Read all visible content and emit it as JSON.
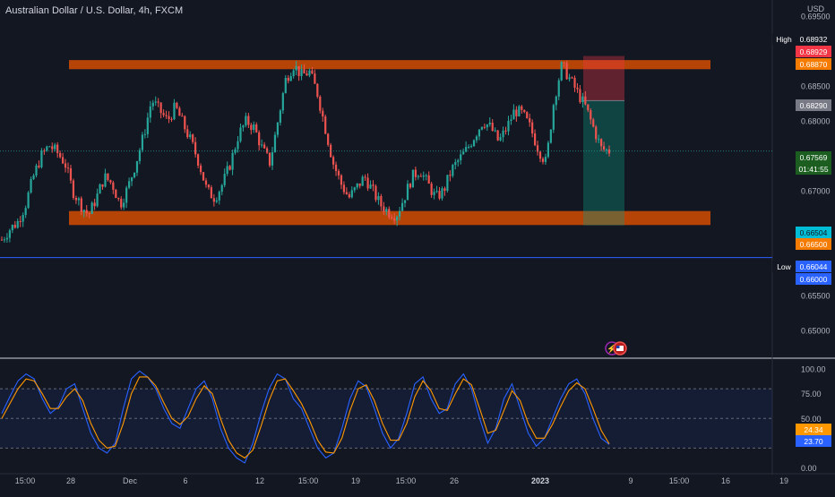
{
  "header": {
    "symbol": "Australian Dollar / U.S. Dollar",
    "interval": "4h",
    "exchange": "FXCM",
    "currency": "USD"
  },
  "chart_data": [
    {
      "type": "candlestick",
      "title": "Australian Dollar / U.S. Dollar, 4h, FXCM",
      "ylim": [
        0.6463,
        0.6973
      ],
      "yticks": [
        "0.69500",
        "0.68500",
        "0.68000",
        "0.67000",
        "0.65500",
        "0.65000"
      ],
      "xticks": [
        "15:00",
        "28",
        "Dec",
        "6",
        "12",
        "15:00",
        "19",
        "15:00",
        "26",
        "2023",
        "9",
        "15:00",
        "16",
        "19"
      ],
      "x_axis_note": "Time axis from late Nov 2022 to mid Jan 2023, 4h bars",
      "zones": [
        {
          "name": "resistance",
          "from": 0.6874,
          "to": 0.6887,
          "color": "#e65100"
        },
        {
          "name": "support",
          "from": 0.6651,
          "to": 0.6671,
          "color": "#e65100"
        }
      ],
      "horizontal_lines": [
        {
          "name": "low",
          "value": 0.66044,
          "color": "#2962ff"
        }
      ],
      "position": {
        "entry": 0.6829,
        "stop": 0.68929,
        "target": 0.66504,
        "risk_color": "#f23645",
        "reward_color": "#089981"
      },
      "price_labels": [
        {
          "label": "High",
          "value": "0.68932",
          "bg": "#131722",
          "num_bg": "#131722",
          "fg": "#ffffff",
          "y": 0.68932
        },
        {
          "label": "",
          "value": "0.68929",
          "bg": "#f23645",
          "num_bg": "#f23645",
          "fg": "#ffffff",
          "y": 0.68929
        },
        {
          "label": "",
          "value": "0.68870",
          "bg": "#f57c00",
          "num_bg": "#f57c00",
          "fg": "#ffffff",
          "y": 0.6887
        },
        {
          "label": "",
          "value": "0.68290",
          "bg": "#787b86",
          "num_bg": "#787b86",
          "fg": "#ffffff",
          "y": 0.6829
        },
        {
          "label": "",
          "value": "0.67569",
          "bg": "#1b5e20",
          "num_bg": "#1b5e20",
          "fg": "#ffffff",
          "y": 0.67569
        },
        {
          "label": "",
          "value": "0.66504",
          "bg": "#00bcd4",
          "num_bg": "#00bcd4",
          "fg": "#131722",
          "y": 0.66504
        },
        {
          "label": "",
          "value": "0.66500",
          "bg": "#f57c00",
          "num_bg": "#f57c00",
          "fg": "#ffffff",
          "y": 0.665
        },
        {
          "label": "Low",
          "value": "0.66044",
          "bg": "#131722",
          "num_bg": "#2962ff",
          "fg": "#ffffff",
          "y": 0.66044
        },
        {
          "label": "",
          "value": "0.66000",
          "bg": "#2962ff",
          "num_bg": "#2962ff",
          "fg": "#ffffff",
          "y": 0.66
        }
      ],
      "countdown": "01:41:55",
      "current_price": 0.67569,
      "up_color": "#26a69a",
      "down_color": "#ef5350",
      "candle_close_path": [
        0.663,
        0.6645,
        0.6655,
        0.668,
        0.672,
        0.675,
        0.6765,
        0.6755,
        0.674,
        0.67,
        0.668,
        0.6665,
        0.669,
        0.672,
        0.671,
        0.668,
        0.6705,
        0.674,
        0.678,
        0.683,
        0.6815,
        0.68,
        0.682,
        0.6795,
        0.677,
        0.674,
        0.67,
        0.669,
        0.671,
        0.674,
        0.678,
        0.68,
        0.679,
        0.676,
        0.674,
        0.68,
        0.686,
        0.688,
        0.6865,
        0.687,
        0.684,
        0.679,
        0.674,
        0.671,
        0.669,
        0.6705,
        0.672,
        0.67,
        0.668,
        0.667,
        0.6665,
        0.669,
        0.672,
        0.673,
        0.671,
        0.669,
        0.67,
        0.673,
        0.6745,
        0.676,
        0.678,
        0.68,
        0.679,
        0.677,
        0.679,
        0.6815,
        0.681,
        0.679,
        0.676,
        0.674,
        0.683,
        0.688,
        0.686,
        0.684,
        0.682,
        0.679,
        0.676,
        0.6757
      ]
    },
    {
      "type": "line",
      "title": "",
      "ylim": [
        -5,
        110
      ],
      "yticks": [
        "100.00",
        "75.00",
        "50.00",
        "0.00"
      ],
      "bands": {
        "upper": 80,
        "middle": 50,
        "lower": 20
      },
      "series": [
        {
          "name": "",
          "color": "#2962ff",
          "last": "23.70",
          "values": [
            55,
            72,
            88,
            95,
            90,
            70,
            55,
            62,
            80,
            85,
            60,
            35,
            20,
            15,
            25,
            60,
            90,
            98,
            92,
            80,
            60,
            45,
            40,
            60,
            80,
            88,
            70,
            40,
            20,
            10,
            5,
            25,
            55,
            80,
            95,
            90,
            70,
            60,
            40,
            20,
            10,
            15,
            40,
            70,
            88,
            82,
            60,
            35,
            20,
            30,
            55,
            85,
            92,
            70,
            55,
            60,
            85,
            95,
            80,
            50,
            25,
            40,
            70,
            85,
            60,
            35,
            22,
            30,
            50,
            70,
            85,
            90,
            75,
            50,
            30,
            23.7
          ]
        },
        {
          "name": "",
          "color": "#ff9800",
          "last": "24.34",
          "values": [
            50,
            65,
            80,
            90,
            88,
            75,
            60,
            60,
            72,
            80,
            68,
            45,
            28,
            20,
            22,
            45,
            75,
            92,
            92,
            83,
            66,
            50,
            44,
            52,
            70,
            83,
            75,
            50,
            28,
            15,
            10,
            18,
            42,
            68,
            88,
            90,
            78,
            65,
            48,
            28,
            16,
            15,
            30,
            58,
            80,
            84,
            68,
            45,
            28,
            28,
            45,
            72,
            88,
            78,
            60,
            58,
            75,
            90,
            84,
            60,
            35,
            38,
            58,
            78,
            68,
            45,
            30,
            30,
            44,
            62,
            78,
            86,
            80,
            60,
            38,
            24.34
          ]
        }
      ]
    }
  ]
}
